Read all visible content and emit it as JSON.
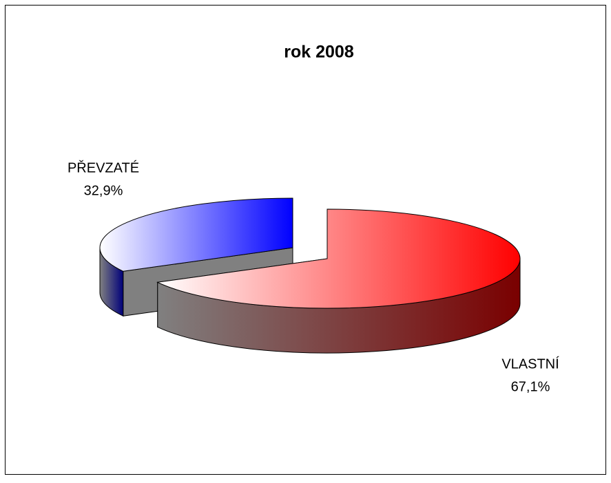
{
  "chart_data": {
    "type": "pie3d",
    "title": "rok 2008",
    "categories": [
      "PŘEVZATÉ",
      "VLASTNÍ"
    ],
    "values": [
      32.9,
      67.1
    ],
    "value_labels": [
      "32,9%",
      "67,1%"
    ],
    "colors": [
      "#0000ff",
      "#ff0000"
    ]
  }
}
